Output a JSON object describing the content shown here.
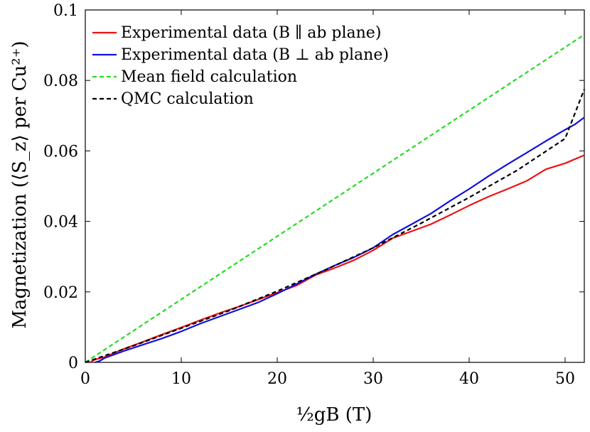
{
  "chart_data": {
    "type": "line",
    "xlabel": "½gB (T)",
    "ylabel": "Magnetization (⟨S_z⟩ per Cu²⁺)",
    "xlim": [
      0,
      52
    ],
    "ylim": [
      0,
      0.1
    ],
    "xticks": [
      0,
      10,
      20,
      30,
      40,
      50
    ],
    "yticks": [
      0,
      0.02,
      0.04,
      0.06,
      0.08,
      0.1
    ],
    "xtick_labels": [
      "0",
      "10",
      "20",
      "30",
      "40",
      "50"
    ],
    "ytick_labels": [
      "0",
      "0.02",
      "0.04",
      "0.06",
      "0.08",
      "0.1"
    ],
    "grid": false,
    "legend_position": "top-left",
    "series": [
      {
        "name": "Experimental data (B ∥ ab plane)",
        "color": "#ee1111",
        "dash": "solid",
        "x": [
          0.5,
          1,
          2,
          4,
          6,
          8,
          10,
          12,
          14,
          16,
          18,
          20,
          22,
          24,
          26,
          28,
          30,
          32,
          34,
          36,
          38,
          40,
          42,
          44,
          46,
          48,
          50,
          52
        ],
        "y": [
          0,
          0.0008,
          0.0015,
          0.0038,
          0.0058,
          0.0079,
          0.0099,
          0.012,
          0.014,
          0.0158,
          0.0178,
          0.0198,
          0.0218,
          0.0248,
          0.0268,
          0.029,
          0.0318,
          0.0352,
          0.0372,
          0.0392,
          0.0418,
          0.0445,
          0.047,
          0.0492,
          0.0515,
          0.0548,
          0.0565,
          0.0588
        ]
      },
      {
        "name": "Experimental data (B ⊥ ab plane)",
        "color": "#1111dd",
        "dash": "solid",
        "x": [
          1,
          1.5,
          2,
          4,
          6,
          8,
          10,
          12,
          14,
          16,
          18,
          20,
          22,
          24,
          26,
          28,
          30,
          32,
          34,
          36,
          38,
          40,
          42,
          44,
          46,
          48,
          50,
          51,
          52
        ],
        "y": [
          0,
          0.0004,
          0.0012,
          0.0032,
          0.005,
          0.0068,
          0.0088,
          0.011,
          0.013,
          0.015,
          0.017,
          0.0195,
          0.0222,
          0.025,
          0.0275,
          0.0298,
          0.0325,
          0.0362,
          0.0392,
          0.0422,
          0.0458,
          0.0492,
          0.0528,
          0.0562,
          0.0595,
          0.0628,
          0.066,
          0.0675,
          0.0695
        ]
      },
      {
        "name": "Mean field calculation",
        "color": "#22dd22",
        "dash": "dashed",
        "x": [
          0,
          52
        ],
        "y": [
          0,
          0.093
        ]
      },
      {
        "name": "QMC calculation",
        "color": "#000000",
        "dash": "dashed",
        "x": [
          0,
          5,
          10,
          15,
          20,
          25,
          30,
          35,
          40,
          45,
          50,
          52
        ],
        "y": [
          0,
          0.0047,
          0.0097,
          0.0147,
          0.0202,
          0.0262,
          0.0325,
          0.0395,
          0.0468,
          0.0545,
          0.0635,
          0.0775
        ]
      }
    ]
  }
}
